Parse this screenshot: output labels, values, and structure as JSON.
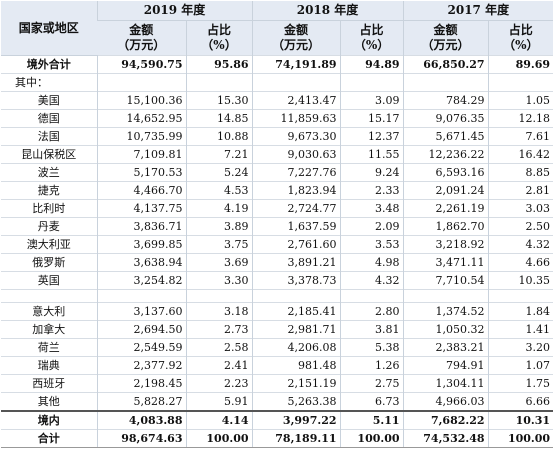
{
  "header": {
    "country_label": "国家或地区",
    "years": [
      "2019 年度",
      "2018 年度",
      "2017 年度"
    ],
    "amount_label": "金额\n（万元）",
    "amount_line1": "金额",
    "amount_line2": "（万元）",
    "pct_line1": "占比",
    "pct_line2": "（%）"
  },
  "rows_top": [
    {
      "name": "境外合计",
      "v": [
        "94,590.75",
        "95.86",
        "74,191.89",
        "94.89",
        "66,850.27",
        "89.69"
      ],
      "bold": true
    },
    {
      "name": "其中：",
      "v": [
        "",
        "",
        "",
        "",
        "",
        ""
      ],
      "sub": true
    },
    {
      "name": "美国",
      "v": [
        "15,100.36",
        "15.30",
        "2,413.47",
        "3.09",
        "784.29",
        "1.05"
      ]
    },
    {
      "name": "德国",
      "v": [
        "14,652.95",
        "14.85",
        "11,859.63",
        "15.17",
        "9,076.35",
        "12.18"
      ]
    },
    {
      "name": "法国",
      "v": [
        "10,735.99",
        "10.88",
        "9,673.30",
        "12.37",
        "5,671.45",
        "7.61"
      ]
    },
    {
      "name": "昆山保税区",
      "v": [
        "7,109.81",
        "7.21",
        "9,030.63",
        "11.55",
        "12,236.22",
        "16.42"
      ]
    },
    {
      "name": "波兰",
      "v": [
        "5,170.53",
        "5.24",
        "7,227.76",
        "9.24",
        "6,593.16",
        "8.85"
      ]
    },
    {
      "name": "捷克",
      "v": [
        "4,466.70",
        "4.53",
        "1,823.94",
        "2.33",
        "2,091.24",
        "2.81"
      ]
    },
    {
      "name": "比利时",
      "v": [
        "4,137.75",
        "4.19",
        "2,724.77",
        "3.48",
        "2,261.19",
        "3.03"
      ]
    },
    {
      "name": "丹麦",
      "v": [
        "3,836.71",
        "3.89",
        "1,637.59",
        "2.09",
        "1,862.70",
        "2.50"
      ]
    },
    {
      "name": "澳大利亚",
      "v": [
        "3,699.85",
        "3.75",
        "2,761.60",
        "3.53",
        "3,218.92",
        "4.32"
      ]
    },
    {
      "name": "俄罗斯",
      "v": [
        "3,638.94",
        "3.69",
        "3,891.21",
        "4.98",
        "3,471.11",
        "4.66"
      ]
    },
    {
      "name": "英国",
      "v": [
        "3,254.82",
        "3.30",
        "3,378.73",
        "4.32",
        "7,710.54",
        "10.35"
      ]
    }
  ],
  "rows_bottom": [
    {
      "name": "意大利",
      "v": [
        "3,137.60",
        "3.18",
        "2,185.41",
        "2.80",
        "1,374.52",
        "1.84"
      ]
    },
    {
      "name": "加拿大",
      "v": [
        "2,694.50",
        "2.73",
        "2,981.71",
        "3.81",
        "1,050.32",
        "1.41"
      ]
    },
    {
      "name": "荷兰",
      "v": [
        "2,549.59",
        "2.58",
        "4,206.08",
        "5.38",
        "2,383.21",
        "3.20"
      ]
    },
    {
      "name": "瑞典",
      "v": [
        "2,377.92",
        "2.41",
        "981.48",
        "1.26",
        "794.91",
        "1.07"
      ]
    },
    {
      "name": "西班牙",
      "v": [
        "2,198.45",
        "2.23",
        "2,151.19",
        "2.75",
        "1,304.11",
        "1.75"
      ]
    },
    {
      "name": "其他",
      "v": [
        "5,828.27",
        "5.91",
        "5,263.38",
        "6.73",
        "4,966.03",
        "6.66"
      ]
    },
    {
      "name": "境内",
      "v": [
        "4,083.88",
        "4.14",
        "3,997.22",
        "5.11",
        "7,682.22",
        "10.31"
      ],
      "bold": true
    },
    {
      "name": "合计",
      "v": [
        "98,674.63",
        "100.00",
        "78,189.11",
        "100.00",
        "74,532.48",
        "100.00"
      ],
      "bold": true
    }
  ]
}
